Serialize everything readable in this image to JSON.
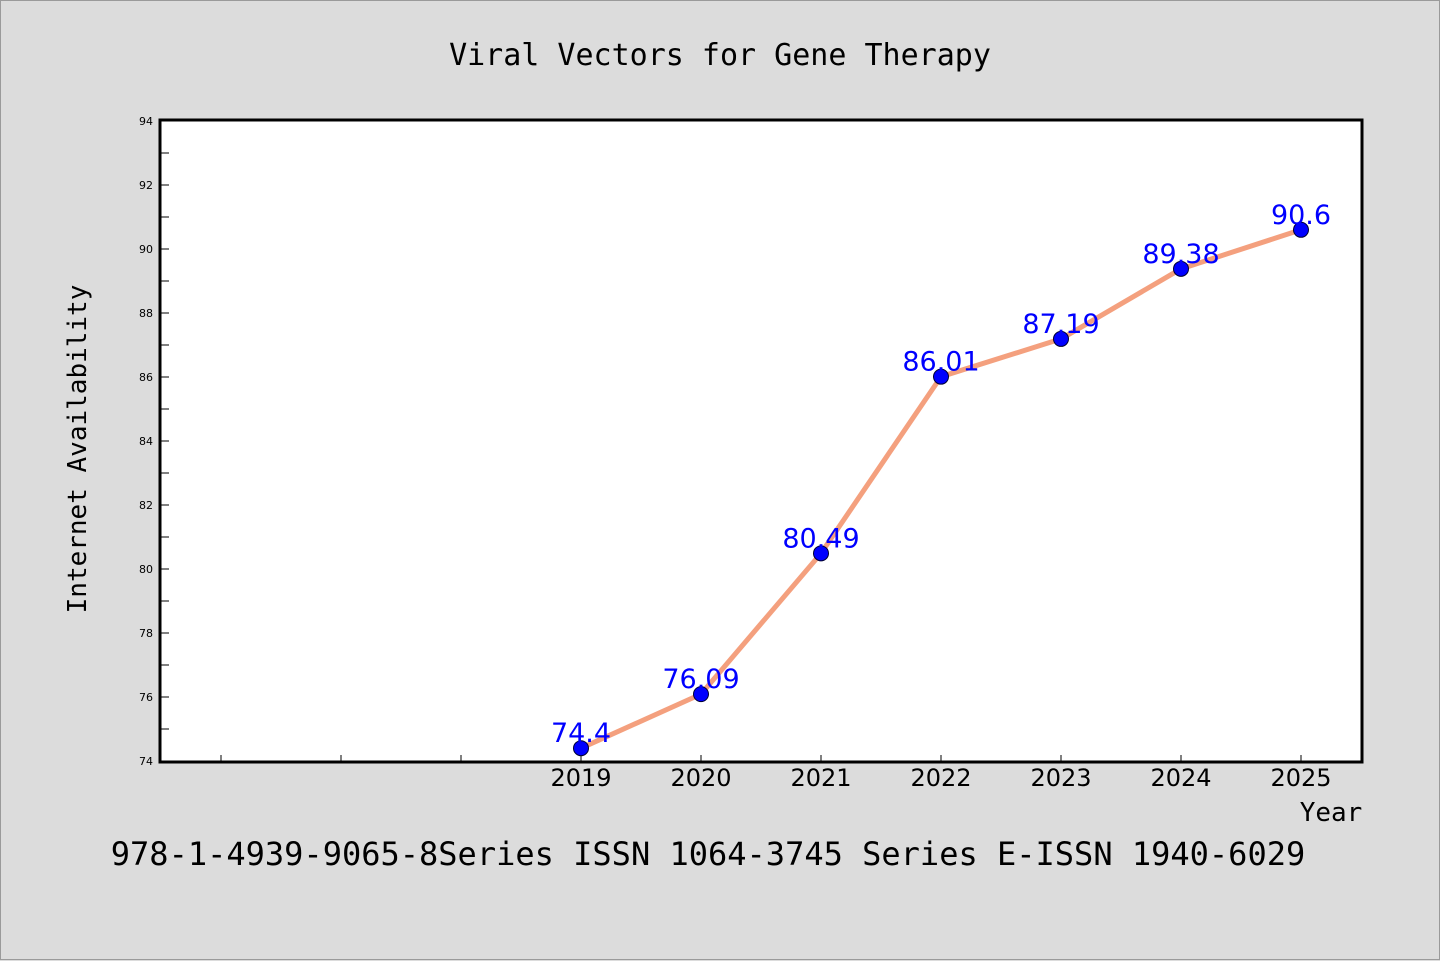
{
  "chart_data": {
    "type": "line",
    "title": "Viral Vectors for Gene Therapy",
    "xlabel": "Year",
    "ylabel": "Internet Availability",
    "categories": [
      "2019",
      "2020",
      "2021",
      "2022",
      "2023",
      "2024",
      "2025"
    ],
    "series": [
      {
        "values": [
          74.4,
          76.09,
          80.49,
          86.01,
          87.19,
          89.38,
          90.6
        ],
        "data_labels": [
          "74.4",
          "76.09",
          "80.49",
          "86.01",
          "87.19",
          "89.38",
          "90.6"
        ]
      }
    ],
    "x_range": [
      2015.5,
      2025.5
    ],
    "ylim": [
      74,
      94
    ],
    "y_ticks": [
      "74",
      "76",
      "78",
      "80",
      "82",
      "84",
      "86",
      "88",
      "90",
      "92",
      "94"
    ],
    "grid": false,
    "legend": "none",
    "colors": {
      "line": "#f4a07e",
      "marker": "#0000ff",
      "data_label": "#0000ff",
      "background": "#dcdcdc",
      "plot_background": "#ffffff"
    }
  },
  "footer": {
    "text": "978-1-4939-9065-8Series ISSN 1064-3745 Series E-ISSN 1940-6029"
  }
}
